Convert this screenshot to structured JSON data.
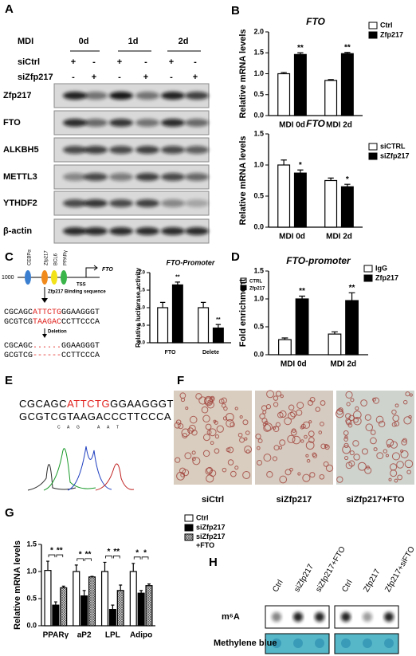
{
  "panel_labels": [
    "A",
    "B",
    "C",
    "D",
    "E",
    "F",
    "G",
    "H"
  ],
  "blot": {
    "treatment": "MDI",
    "days": [
      "0d",
      "1d",
      "2d"
    ],
    "rows": [
      {
        "label": "siCtrl",
        "signs": [
          "+",
          "-",
          "+",
          "-",
          "+",
          "-"
        ]
      },
      {
        "label": "siZfp217",
        "signs": [
          "-",
          "+",
          "-",
          "+",
          "-",
          "+"
        ]
      }
    ],
    "bands": [
      "Zfp217",
      "FTO",
      "ALKBH5",
      "METTL3",
      "YTHDF2",
      "β-actin"
    ]
  },
  "promoter_diagram": {
    "start": "1000",
    "sites": [
      "CEBPα",
      "Zfp217",
      "BCL6",
      "PPARγ"
    ],
    "gene": "FTO",
    "tss": "TSS",
    "binding": "Zfp217 Binding sequence",
    "seq_top": [
      "CGCAGC",
      "ATTCTG",
      "GGAAGGGT"
    ],
    "seq_bottom": [
      "GCGTCG",
      "TAAGAC",
      "CCTTCCCA"
    ],
    "deletion": "Deletion",
    "del_top": [
      "CGCAGC",
      "......",
      "GGAAGGGT"
    ],
    "del_bottom": [
      "GCGTCG",
      "------",
      "CCTTCCCA"
    ]
  },
  "sequencing": {
    "top": [
      "CGCAGC",
      "ATTCTG",
      "GGAAGGGT"
    ],
    "bottom": [
      "GCGTCG",
      "TAAGAC",
      "CCTTCCCA"
    ],
    "trace_bases": [
      "C",
      "A",
      "G",
      "A",
      "A",
      "T"
    ]
  },
  "staining": {
    "captions": [
      "siCtrl",
      "siZfp217",
      "siZfp217+FTO"
    ]
  },
  "dot_blot": {
    "groups": [
      [
        "Ctrl",
        "siZfp217",
        "siZfp217+FTO"
      ],
      [
        "Ctrl",
        "Zfp217",
        "Zfp217+siFTO"
      ]
    ],
    "rows": [
      "m⁶A",
      "Methylene blue"
    ]
  },
  "chart_data": [
    {
      "type": "bar",
      "title": "FTO",
      "y_label": "Relative mRNA levels",
      "categories": [
        "MDI 0d",
        "MDI 2d"
      ],
      "series": [
        {
          "name": "Ctrl",
          "color": "#ffffff",
          "values": [
            1.0,
            0.84
          ],
          "errors": [
            0.03,
            0.02
          ]
        },
        {
          "name": "Zfp217",
          "color": "#000000",
          "values": [
            1.46,
            1.48
          ],
          "errors": [
            0.04,
            0.03
          ],
          "significance": [
            "**",
            "**"
          ]
        }
      ],
      "ylim": [
        0,
        2
      ],
      "yticks": [
        {
          "value": 0,
          "label": "0.0"
        },
        0.5,
        {
          "value": 1,
          "label": "1.0"
        },
        1.5,
        {
          "value": 2,
          "label": "2.0"
        }
      ]
    },
    {
      "type": "bar",
      "title": "FTO",
      "y_label": "Relative mRNA levels",
      "categories": [
        "MDI 0d",
        "MDI 2d"
      ],
      "series": [
        {
          "name": "siCTRL",
          "color": "#ffffff",
          "values": [
            1.0,
            0.75
          ],
          "errors": [
            0.08,
            0.04
          ]
        },
        {
          "name": "siZfp217",
          "color": "#000000",
          "values": [
            0.87,
            0.65
          ],
          "errors": [
            0.05,
            0.04
          ],
          "significance": [
            "*",
            "*"
          ]
        }
      ],
      "ylim": [
        0,
        1.5
      ],
      "yticks": [
        {
          "value": 0,
          "label": "0.0"
        },
        0.5,
        {
          "value": 1,
          "label": "1.0"
        },
        1.5
      ]
    },
    {
      "type": "bar",
      "title": "FTO-Promoter",
      "y_label": "Relative luciferase activity",
      "categories": [
        "FTO",
        "Delete"
      ],
      "series": [
        {
          "name": "CTRL",
          "color": "#ffffff",
          "values": [
            1.0,
            1.0
          ],
          "errors": [
            0.15,
            0.15
          ]
        },
        {
          "name": "Zfp217",
          "color": "#000000",
          "values": [
            1.65,
            0.42
          ],
          "errors": [
            0.08,
            0.1
          ],
          "significance": [
            "**",
            "**"
          ]
        }
      ],
      "ylim": [
        0,
        2
      ],
      "yticks": [
        {
          "value": 0,
          "label": "0.0"
        },
        0.5,
        {
          "value": 1,
          "label": "1.0"
        },
        1.5,
        {
          "value": 2,
          "label": "2.0"
        }
      ]
    },
    {
      "type": "bar",
      "title": "FTO-promoter",
      "y_label": "Fold enrichment",
      "categories": [
        "MDI 0d",
        "MDI 2d"
      ],
      "series": [
        {
          "name": "IgG",
          "color": "#ffffff",
          "values": [
            0.27,
            0.37
          ],
          "errors": [
            0.03,
            0.04
          ]
        },
        {
          "name": "Zfp217",
          "color": "#000000",
          "values": [
            1.0,
            0.97
          ],
          "errors": [
            0.05,
            0.14
          ],
          "significance": [
            "**",
            "**"
          ]
        }
      ],
      "ylim": [
        0,
        1.5
      ],
      "yticks": [
        {
          "value": 0,
          "label": "0.0"
        },
        0.5,
        {
          "value": 1,
          "label": "1.0"
        },
        1.5
      ]
    },
    {
      "type": "bar",
      "y_label": "Relative mRNA levels",
      "categories": [
        "PPARγ",
        "aP2",
        "LPL",
        "Adipo"
      ],
      "series": [
        {
          "name": "Ctrl",
          "color": "#ffffff",
          "values": [
            1.02,
            1.0,
            1.0,
            1.0
          ],
          "errors": [
            0.17,
            0.12,
            0.17,
            0.15
          ]
        },
        {
          "name": "siZfp217",
          "color": "#000000",
          "values": [
            0.38,
            0.55,
            0.3,
            0.6
          ],
          "errors": [
            0.06,
            0.1,
            0.08,
            0.05
          ],
          "significance": [
            "*",
            "*",
            "*",
            "*"
          ]
        },
        {
          "name": "siZfp217 +FTO",
          "color": "#555555",
          "pattern": "crosshatch",
          "values": [
            0.7,
            0.9,
            0.65,
            0.74
          ],
          "errors": [
            0.03,
            0.01,
            0.1,
            0.03
          ],
          "significance": [
            "**",
            "**",
            "**",
            "*"
          ]
        }
      ],
      "ylim": [
        0,
        1.5
      ],
      "yticks": [
        {
          "value": 0,
          "label": "0.0"
        },
        0.5,
        {
          "value": 1,
          "label": "1.0"
        },
        1.5
      ]
    }
  ]
}
